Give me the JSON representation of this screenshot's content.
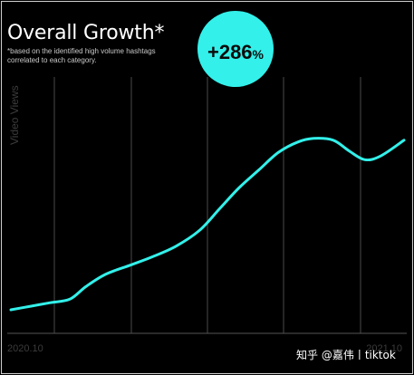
{
  "title": "Overall Growth*",
  "note": "*based on the identified high volume hashtags correlated to each category.",
  "badge": {
    "value": "+286",
    "unit": "%"
  },
  "watermark": "知乎 @嘉伟丨tiktok",
  "colors": {
    "background": "#000000",
    "line": "#33f0ea",
    "badge": "#33f0ea",
    "grid": "#4a4a4a"
  },
  "chart_data": {
    "type": "line",
    "title": "Overall Growth*",
    "subtitle": "*based on the identified high volume hashtags correlated to each category.",
    "ylabel": "Video Views",
    "xlabel": "",
    "x_tick_labels": [
      "2020.10",
      "2021.10"
    ],
    "y_values_unit": "relative (no printed scale)",
    "annotation": "+286%",
    "grid": "vertical lines only",
    "series": [
      {
        "values": [
          [
            0.0,
            0.0
          ],
          [
            0.05,
            0.02
          ],
          [
            0.1,
            0.04
          ],
          [
            0.15,
            0.06
          ],
          [
            0.19,
            0.13
          ],
          [
            0.24,
            0.2
          ],
          [
            0.3,
            0.25
          ],
          [
            0.36,
            0.3
          ],
          [
            0.42,
            0.36
          ],
          [
            0.48,
            0.45
          ],
          [
            0.53,
            0.57
          ],
          [
            0.58,
            0.69
          ],
          [
            0.63,
            0.79
          ],
          [
            0.68,
            0.89
          ],
          [
            0.73,
            0.95
          ],
          [
            0.77,
            0.97
          ],
          [
            0.82,
            0.96
          ],
          [
            0.86,
            0.9
          ],
          [
            0.9,
            0.85
          ],
          [
            0.94,
            0.87
          ],
          [
            1.0,
            0.96
          ]
        ]
      }
    ]
  }
}
